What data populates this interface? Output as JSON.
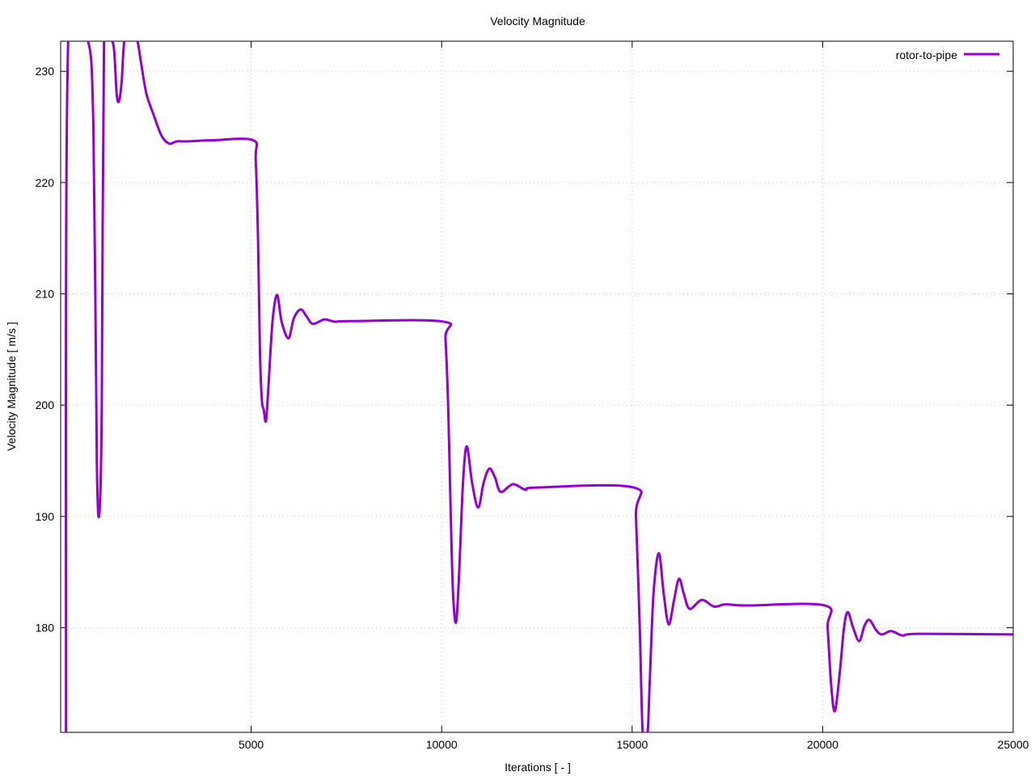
{
  "chart_data": {
    "type": "line",
    "title": "Velocity Magnitude",
    "xlabel": "Iterations [ - ]",
    "ylabel": "Velocity Magnitude [ m/s ]",
    "xlim": [
      0,
      25000
    ],
    "ylim": [
      170.6,
      232.7
    ],
    "xticks": [
      5000,
      10000,
      15000,
      20000,
      25000
    ],
    "yticks": [
      180,
      190,
      200,
      210,
      220,
      230
    ],
    "grid": true,
    "legend_position": "top-right",
    "series": [
      {
        "name": "rotor-to-pipe",
        "color": "#9400d3",
        "points": [
          [
            140,
            160
          ],
          [
            200,
            245
          ],
          [
            700,
            250
          ],
          [
            860,
            225
          ],
          [
            950,
            195
          ],
          [
            1020,
            190.4
          ],
          [
            1080,
            200
          ],
          [
            1140,
            240
          ],
          [
            1300,
            245
          ],
          [
            1400,
            232
          ],
          [
            1470,
            228
          ],
          [
            1530,
            227.3
          ],
          [
            1600,
            229
          ],
          [
            1680,
            235
          ],
          [
            1850,
            245
          ],
          [
            2000,
            236
          ],
          [
            2100,
            231
          ],
          [
            2250,
            228
          ],
          [
            2450,
            226
          ],
          [
            2650,
            224.2
          ],
          [
            2850,
            223.5
          ],
          [
            3050,
            223.7
          ],
          [
            3300,
            223.7
          ],
          [
            3600,
            223.75
          ],
          [
            4000,
            223.8
          ],
          [
            5050,
            223.8
          ],
          [
            5120,
            222
          ],
          [
            5180,
            215
          ],
          [
            5230,
            205
          ],
          [
            5280,
            200.5
          ],
          [
            5330,
            199.6
          ],
          [
            5390,
            198.6
          ],
          [
            5460,
            202
          ],
          [
            5560,
            207.5
          ],
          [
            5680,
            209.9
          ],
          [
            5800,
            207.5
          ],
          [
            5980,
            206
          ],
          [
            6120,
            207.8
          ],
          [
            6300,
            208.6
          ],
          [
            6450,
            208
          ],
          [
            6620,
            207.3
          ],
          [
            6920,
            207.7
          ],
          [
            7200,
            207.5
          ],
          [
            7600,
            207.55
          ],
          [
            10050,
            207.5
          ],
          [
            10100,
            206
          ],
          [
            10170,
            200
          ],
          [
            10240,
            190
          ],
          [
            10300,
            183
          ],
          [
            10380,
            180.5
          ],
          [
            10460,
            185
          ],
          [
            10560,
            193
          ],
          [
            10660,
            196.3
          ],
          [
            10800,
            193
          ],
          [
            10960,
            190.8
          ],
          [
            11100,
            193
          ],
          [
            11250,
            194.3
          ],
          [
            11400,
            193.5
          ],
          [
            11550,
            192.2
          ],
          [
            11870,
            192.9
          ],
          [
            12200,
            192.4
          ],
          [
            12500,
            192.6
          ],
          [
            15040,
            192.6
          ],
          [
            15100,
            190
          ],
          [
            15200,
            180
          ],
          [
            15280,
            168
          ],
          [
            15400,
            165
          ],
          [
            15460,
            175
          ],
          [
            15560,
            183
          ],
          [
            15700,
            186.7
          ],
          [
            15830,
            183
          ],
          [
            15960,
            180.3
          ],
          [
            16100,
            182.5
          ],
          [
            16230,
            184.4
          ],
          [
            16360,
            183
          ],
          [
            16510,
            181.7
          ],
          [
            16830,
            182.5
          ],
          [
            17150,
            181.9
          ],
          [
            17450,
            182.1
          ],
          [
            18000,
            182.0
          ],
          [
            20060,
            182.0
          ],
          [
            20130,
            180
          ],
          [
            20220,
            175
          ],
          [
            20320,
            172.5
          ],
          [
            20450,
            176
          ],
          [
            20560,
            180
          ],
          [
            20660,
            181.4
          ],
          [
            20800,
            180
          ],
          [
            20960,
            178.8
          ],
          [
            21100,
            180.2
          ],
          [
            21230,
            180.7
          ],
          [
            21400,
            179.8
          ],
          [
            21550,
            179.4
          ],
          [
            21800,
            179.7
          ],
          [
            22100,
            179.3
          ],
          [
            22500,
            179.45
          ],
          [
            25000,
            179.4
          ]
        ]
      }
    ]
  }
}
